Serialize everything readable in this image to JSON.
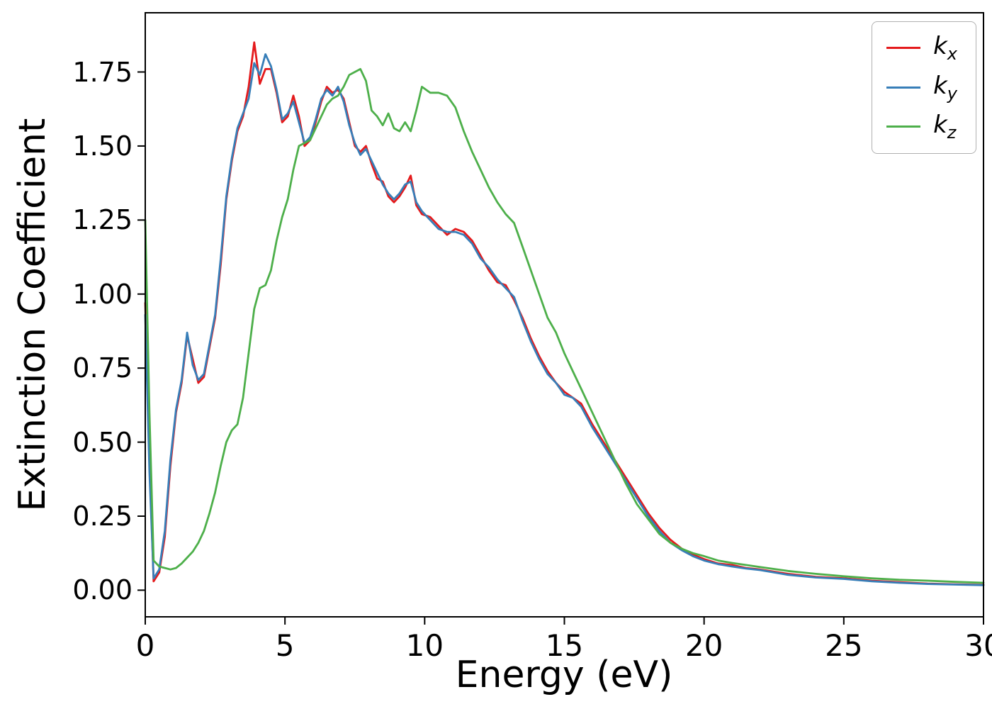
{
  "figure": {
    "background": "#ffffff",
    "spine_color": "#000000"
  },
  "chart_data": {
    "type": "line",
    "title": "",
    "xlabel": "Energy (eV)",
    "ylabel": "Extinction Coefficient",
    "xlim": [
      0,
      30
    ],
    "ylim": [
      -0.09,
      1.95
    ],
    "grid": false,
    "legend_position": "upper right",
    "x_tick_values": [
      0,
      5,
      10,
      15,
      20,
      25,
      30
    ],
    "x_tick_labels": [
      "0",
      "5",
      "10",
      "15",
      "20",
      "25",
      "30"
    ],
    "y_tick_values": [
      0.0,
      0.25,
      0.5,
      0.75,
      1.0,
      1.25,
      1.5,
      1.75
    ],
    "y_tick_labels": [
      "0.00",
      "0.25",
      "0.50",
      "0.75",
      "1.00",
      "1.25",
      "1.50",
      "1.75"
    ],
    "x": [
      0,
      0.15,
      0.3,
      0.5,
      0.7,
      0.9,
      1.1,
      1.3,
      1.5,
      1.7,
      1.9,
      2.1,
      2.3,
      2.5,
      2.7,
      2.9,
      3.1,
      3.3,
      3.5,
      3.7,
      3.9,
      4.1,
      4.3,
      4.5,
      4.7,
      4.9,
      5.1,
      5.3,
      5.5,
      5.7,
      5.9,
      6.1,
      6.3,
      6.5,
      6.7,
      6.9,
      7.1,
      7.3,
      7.5,
      7.7,
      7.9,
      8.1,
      8.3,
      8.5,
      8.7,
      8.9,
      9.1,
      9.3,
      9.5,
      9.7,
      9.9,
      10.2,
      10.5,
      10.8,
      11.1,
      11.4,
      11.7,
      12.0,
      12.3,
      12.6,
      12.9,
      13.2,
      13.5,
      13.8,
      14.1,
      14.4,
      14.7,
      15.0,
      15.3,
      15.6,
      16.0,
      16.4,
      16.8,
      17.2,
      17.6,
      18.0,
      18.4,
      18.8,
      19.2,
      19.6,
      20.0,
      20.5,
      21.0,
      21.5,
      22.0,
      23.0,
      24.0,
      25.0,
      26.0,
      27.0,
      28.0,
      29.0,
      30.0
    ],
    "series": [
      {
        "name": "k_x",
        "label_base": "k",
        "label_sub": "x",
        "color": "#e41a1c",
        "values": [
          0.97,
          0.45,
          0.03,
          0.06,
          0.18,
          0.42,
          0.6,
          0.7,
          0.86,
          0.78,
          0.7,
          0.72,
          0.82,
          0.92,
          1.1,
          1.32,
          1.45,
          1.55,
          1.6,
          1.7,
          1.85,
          1.71,
          1.76,
          1.76,
          1.68,
          1.58,
          1.6,
          1.67,
          1.6,
          1.5,
          1.52,
          1.58,
          1.65,
          1.7,
          1.68,
          1.69,
          1.66,
          1.58,
          1.5,
          1.48,
          1.5,
          1.44,
          1.39,
          1.38,
          1.33,
          1.31,
          1.33,
          1.36,
          1.4,
          1.3,
          1.27,
          1.26,
          1.23,
          1.2,
          1.22,
          1.21,
          1.18,
          1.13,
          1.08,
          1.04,
          1.03,
          0.98,
          0.92,
          0.85,
          0.79,
          0.74,
          0.7,
          0.67,
          0.65,
          0.63,
          0.56,
          0.5,
          0.44,
          0.38,
          0.32,
          0.26,
          0.21,
          0.17,
          0.14,
          0.12,
          0.105,
          0.09,
          0.085,
          0.075,
          0.07,
          0.055,
          0.045,
          0.04,
          0.032,
          0.027,
          0.022,
          0.02,
          0.018
        ]
      },
      {
        "name": "k_y",
        "label_base": "k",
        "label_sub": "y",
        "color": "#377eb8",
        "values": [
          0.93,
          0.4,
          0.04,
          0.07,
          0.2,
          0.44,
          0.61,
          0.71,
          0.87,
          0.76,
          0.71,
          0.73,
          0.83,
          0.93,
          1.12,
          1.33,
          1.46,
          1.56,
          1.61,
          1.66,
          1.78,
          1.74,
          1.81,
          1.77,
          1.69,
          1.59,
          1.61,
          1.65,
          1.58,
          1.51,
          1.53,
          1.59,
          1.66,
          1.69,
          1.67,
          1.7,
          1.65,
          1.57,
          1.51,
          1.47,
          1.49,
          1.45,
          1.41,
          1.37,
          1.34,
          1.32,
          1.34,
          1.37,
          1.38,
          1.31,
          1.28,
          1.25,
          1.22,
          1.21,
          1.21,
          1.2,
          1.17,
          1.12,
          1.09,
          1.05,
          1.02,
          0.99,
          0.91,
          0.84,
          0.78,
          0.73,
          0.7,
          0.66,
          0.65,
          0.62,
          0.55,
          0.49,
          0.43,
          0.37,
          0.31,
          0.25,
          0.2,
          0.16,
          0.135,
          0.115,
          0.1,
          0.088,
          0.08,
          0.073,
          0.068,
          0.052,
          0.043,
          0.038,
          0.03,
          0.025,
          0.021,
          0.019,
          0.017
        ]
      },
      {
        "name": "k_z",
        "label_base": "k",
        "label_sub": "z",
        "color": "#4daf4a",
        "values": [
          1.25,
          0.6,
          0.1,
          0.08,
          0.075,
          0.07,
          0.075,
          0.09,
          0.11,
          0.13,
          0.16,
          0.2,
          0.26,
          0.33,
          0.42,
          0.5,
          0.54,
          0.56,
          0.65,
          0.8,
          0.95,
          1.02,
          1.03,
          1.08,
          1.18,
          1.26,
          1.32,
          1.42,
          1.5,
          1.51,
          1.52,
          1.56,
          1.6,
          1.64,
          1.66,
          1.67,
          1.7,
          1.74,
          1.75,
          1.76,
          1.72,
          1.62,
          1.6,
          1.57,
          1.61,
          1.56,
          1.55,
          1.58,
          1.55,
          1.62,
          1.7,
          1.68,
          1.68,
          1.67,
          1.63,
          1.55,
          1.48,
          1.42,
          1.36,
          1.31,
          1.27,
          1.24,
          1.16,
          1.08,
          1.0,
          0.92,
          0.87,
          0.8,
          0.74,
          0.68,
          0.6,
          0.52,
          0.44,
          0.36,
          0.29,
          0.24,
          0.19,
          0.16,
          0.14,
          0.125,
          0.115,
          0.1,
          0.092,
          0.085,
          0.078,
          0.065,
          0.055,
          0.047,
          0.04,
          0.035,
          0.032,
          0.028,
          0.025
        ]
      }
    ]
  }
}
